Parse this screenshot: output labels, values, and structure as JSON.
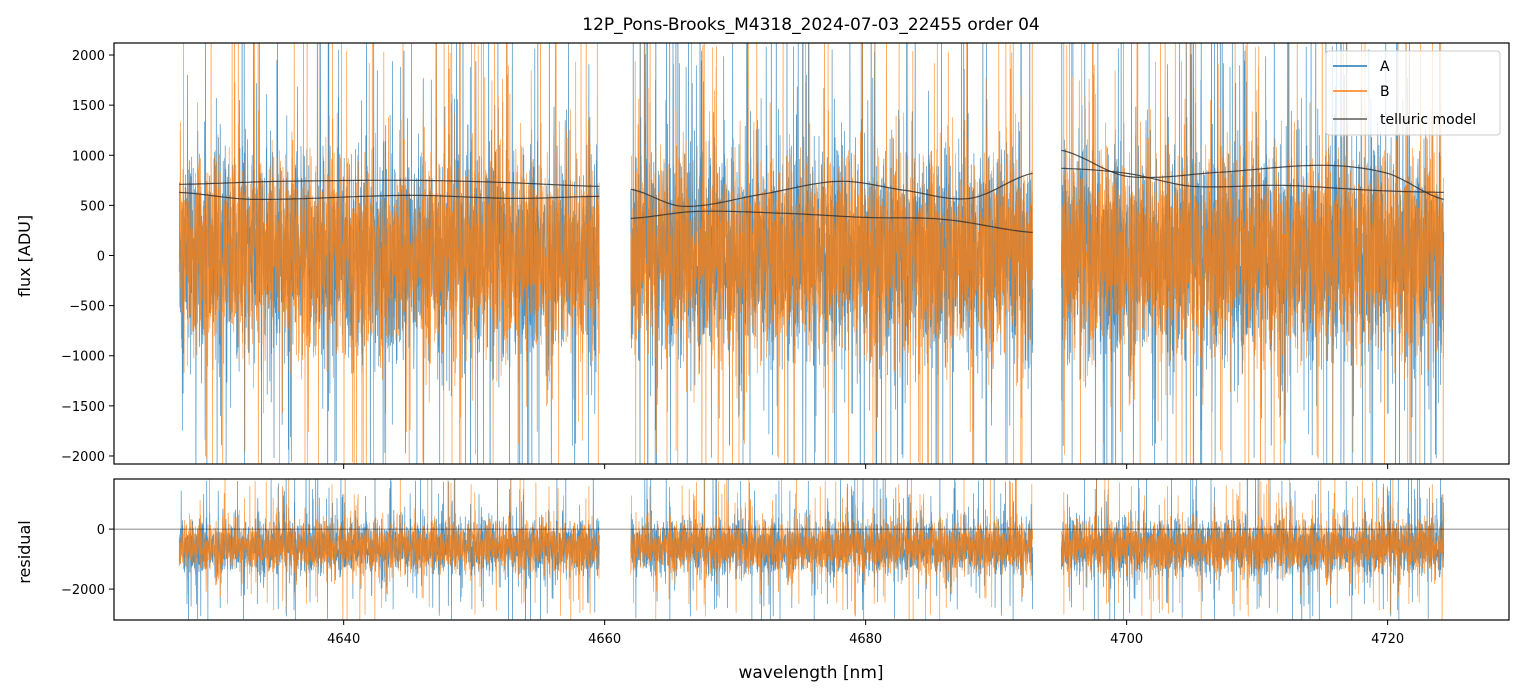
{
  "chart_data": [
    {
      "type": "line",
      "title": "12P_Pons-Brooks_M4318_2024-07-03_22455  order 04",
      "xlabel": "",
      "ylabel": "flux [ADU]",
      "xlim": [
        4622.4,
        4729.3
      ],
      "ylim": [
        -2080,
        2120
      ],
      "yticks": [
        2000,
        1500,
        1000,
        500,
        0,
        -500,
        -1000,
        -1500,
        -2000
      ],
      "ytick_labels": [
        "2000",
        "1500",
        "1000",
        "500",
        "0",
        "−500",
        "−1000",
        "−1500",
        "−2000"
      ],
      "xticks": [
        4640,
        4660,
        4680,
        4700,
        4720
      ],
      "grid": false,
      "legend": {
        "placement": "top-right",
        "entries": [
          "A",
          "B",
          "telluric model"
        ]
      },
      "segments": [
        [
          4627.4,
          4659.6
        ],
        [
          4662.0,
          4692.8
        ],
        [
          4695.0,
          4724.3
        ]
      ],
      "series": [
        {
          "name": "A",
          "color": "#1f77b4",
          "kind": "noisy spectrum",
          "approx_center": 0,
          "approx_spread": 700
        },
        {
          "name": "B",
          "color": "#ff7f0e",
          "kind": "noisy spectrum",
          "approx_center": 0,
          "approx_spread": 650
        },
        {
          "name": "telluric model",
          "color": "#333333",
          "curves": [
            {
              "x": [
                4627.4,
                4635,
                4645,
                4652,
                4659.6
              ],
              "y": [
                710,
                740,
                750,
                730,
                690
              ]
            },
            {
              "x": [
                4627.4,
                4633,
                4645,
                4653,
                4659.6
              ],
              "y": [
                630,
                560,
                600,
                570,
                590
              ]
            },
            {
              "x": [
                4662.0,
                4666,
                4672,
                4678,
                4683,
                4688,
                4692.8
              ],
              "y": [
                660,
                490,
                610,
                740,
                650,
                570,
                820
              ]
            },
            {
              "x": [
                4662.0,
                4667,
                4674,
                4680,
                4686,
                4692.8
              ],
              "y": [
                370,
                440,
                420,
                380,
                360,
                230
              ]
            },
            {
              "x": [
                4695.0,
                4700,
                4707,
                4715,
                4720,
                4724.3
              ],
              "y": [
                1050,
                790,
                830,
                900,
                820,
                560
              ]
            },
            {
              "x": [
                4695.0,
                4700,
                4705,
                4712,
                4719,
                4724.3
              ],
              "y": [
                870,
                820,
                690,
                700,
                650,
                630
              ]
            }
          ]
        }
      ]
    },
    {
      "type": "line",
      "title": "",
      "xlabel": "wavelength [nm]",
      "ylabel": "residual",
      "xlim": [
        4622.4,
        4729.3
      ],
      "ylim": [
        -3030,
        1670
      ],
      "yticks": [
        0,
        -2000
      ],
      "ytick_labels": [
        "0",
        "−2000"
      ],
      "xticks": [
        4640,
        4660,
        4680,
        4700,
        4720
      ],
      "xtick_labels": [
        "4640",
        "4660",
        "4680",
        "4700",
        "4720"
      ],
      "zero_line": 0,
      "grid": false,
      "series": [
        {
          "name": "A",
          "color": "#1f77b4",
          "kind": "noisy residual",
          "approx_center": -600,
          "approx_spread": 600
        },
        {
          "name": "B",
          "color": "#ff7f0e",
          "kind": "noisy residual",
          "approx_center": -600,
          "approx_spread": 550
        }
      ]
    }
  ]
}
